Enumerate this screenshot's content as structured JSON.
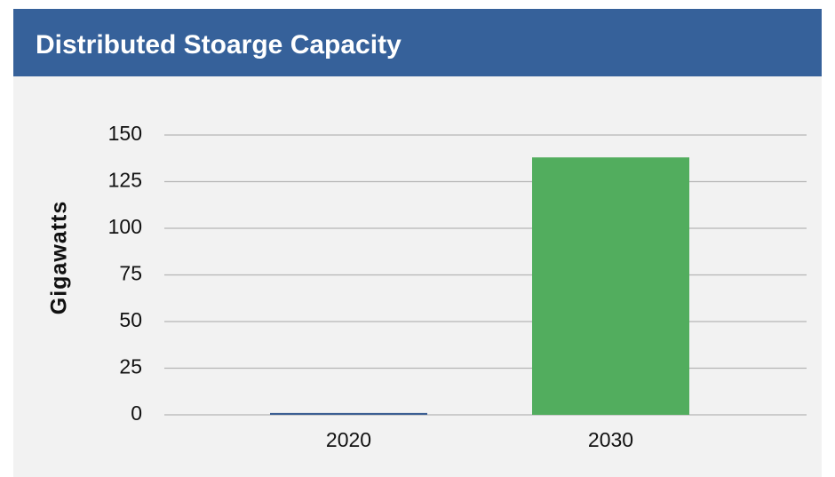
{
  "chart_data": {
    "type": "bar",
    "title": "Distributed Stoarge Capacity",
    "y_label": "Gigawatts",
    "categories": [
      "2020",
      "2030"
    ],
    "values": [
      1,
      138
    ],
    "colors": [
      "#3c5f93",
      "#52ad5e"
    ],
    "ylim": [
      0,
      150
    ],
    "yticks": [
      0,
      25,
      50,
      75,
      100,
      125,
      150
    ],
    "grid": true
  }
}
